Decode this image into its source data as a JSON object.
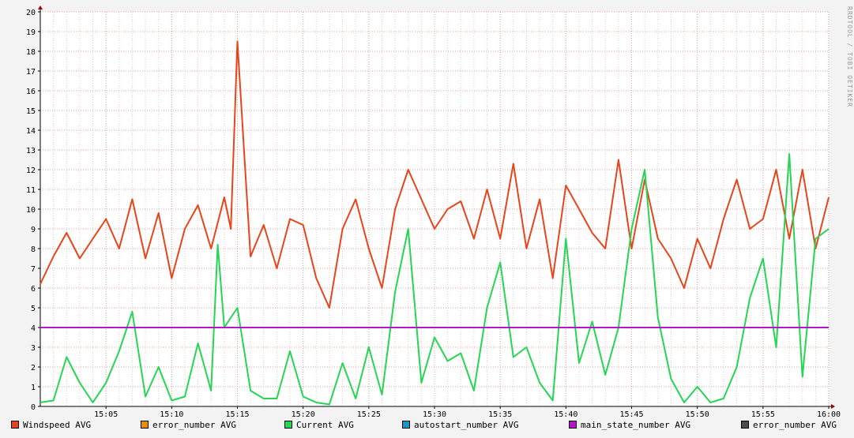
{
  "chart_data": {
    "type": "line",
    "watermark": "RRDTOOL / TOBI OETIKER",
    "ylim": [
      0,
      20
    ],
    "yticks": [
      0,
      1,
      2,
      3,
      4,
      5,
      6,
      7,
      8,
      9,
      10,
      11,
      12,
      13,
      14,
      15,
      16,
      17,
      18,
      19,
      20
    ],
    "xlim": [
      "15:00",
      "16:00"
    ],
    "xticks": [
      "15:05",
      "15:10",
      "15:15",
      "15:20",
      "15:25",
      "15:30",
      "15:35",
      "15:40",
      "15:45",
      "15:50",
      "15:55",
      "16:00"
    ],
    "grid": true,
    "legend_position": "bottom",
    "series": [
      {
        "name": "Windspeed AVG",
        "color": "#e8441a",
        "x": [
          "15:00",
          "15:01",
          "15:02",
          "15:03",
          "15:04",
          "15:05",
          "15:06",
          "15:07",
          "15:08",
          "15:09",
          "15:10",
          "15:11",
          "15:12",
          "15:13",
          "15:14",
          "15:14.5",
          "15:15",
          "15:16",
          "15:17",
          "15:18",
          "15:19",
          "15:20",
          "15:21",
          "15:22",
          "15:23",
          "15:24",
          "15:25",
          "15:26",
          "15:27",
          "15:28",
          "15:29",
          "15:30",
          "15:31",
          "15:32",
          "15:33",
          "15:34",
          "15:35",
          "15:36",
          "15:37",
          "15:38",
          "15:39",
          "15:40",
          "15:41",
          "15:42",
          "15:43",
          "15:44",
          "15:45",
          "15:46",
          "15:47",
          "15:48",
          "15:49",
          "15:50",
          "15:51",
          "15:52",
          "15:53",
          "15:54",
          "15:55",
          "15:56",
          "15:57",
          "15:58",
          "15:59",
          "16:00"
        ],
        "values": [
          6.2,
          7.6,
          8.8,
          7.5,
          8.5,
          9.5,
          8.0,
          10.5,
          7.5,
          9.8,
          6.5,
          9.0,
          10.2,
          8.0,
          10.6,
          9.0,
          18.5,
          7.6,
          9.2,
          7.0,
          9.5,
          9.2,
          6.5,
          5.0,
          9.0,
          10.5,
          8.0,
          6.0,
          10.0,
          12.0,
          10.5,
          9.0,
          10.0,
          10.4,
          8.5,
          11.0,
          8.5,
          12.3,
          8.0,
          10.5,
          6.5,
          11.2,
          10.0,
          8.8,
          8.0,
          12.5,
          8.0,
          11.5,
          8.5,
          7.5,
          6.0,
          8.5,
          7.0,
          9.5,
          11.5,
          9.0,
          9.5,
          12.0,
          8.5,
          12.0,
          8.0,
          10.6
        ]
      },
      {
        "name": "error_number AVG",
        "color": "#ea8f00",
        "x": [],
        "values": []
      },
      {
        "name": "Current AVG",
        "color": "#24d653",
        "x": [
          "15:00",
          "15:01",
          "15:02",
          "15:03",
          "15:04",
          "15:05",
          "15:06",
          "15:07",
          "15:08",
          "15:09",
          "15:10",
          "15:11",
          "15:12",
          "15:13",
          "15:13.5",
          "15:14",
          "15:15",
          "15:16",
          "15:17",
          "15:18",
          "15:19",
          "15:20",
          "15:21",
          "15:22",
          "15:23",
          "15:24",
          "15:25",
          "15:26",
          "15:27",
          "15:28",
          "15:29",
          "15:30",
          "15:31",
          "15:32",
          "15:33",
          "15:34",
          "15:35",
          "15:36",
          "15:37",
          "15:38",
          "15:39",
          "15:40",
          "15:41",
          "15:42",
          "15:43",
          "15:44",
          "15:45",
          "15:46",
          "15:47",
          "15:48",
          "15:49",
          "15:50",
          "15:51",
          "15:52",
          "15:53",
          "15:54",
          "15:55",
          "15:56",
          "15:57",
          "15:58",
          "15:59",
          "16:00"
        ],
        "values": [
          0.2,
          0.3,
          2.5,
          1.2,
          0.2,
          1.2,
          2.8,
          4.8,
          0.5,
          2.0,
          0.3,
          0.5,
          3.2,
          0.8,
          8.2,
          4.0,
          5.0,
          0.8,
          0.4,
          0.4,
          2.8,
          0.5,
          0.2,
          0.1,
          2.2,
          0.4,
          3.0,
          0.6,
          5.8,
          9.0,
          1.2,
          3.5,
          2.3,
          2.7,
          0.8,
          5.0,
          7.3,
          2.5,
          3.0,
          1.2,
          0.3,
          8.5,
          2.2,
          4.3,
          1.6,
          4.0,
          9.0,
          12.0,
          4.5,
          1.4,
          0.2,
          1.0,
          0.2,
          0.4,
          2.0,
          5.5,
          7.5,
          3.0,
          12.8,
          1.5,
          8.5,
          9.0
        ]
      },
      {
        "name": "autostart_number AVG",
        "color": "#1598c3",
        "x": [],
        "values": []
      },
      {
        "name": "main_state_number AVG",
        "color": "#b415c7",
        "x": [
          "15:00",
          "16:00"
        ],
        "values": [
          4,
          4
        ]
      },
      {
        "name": "error_number AVG",
        "color": "#4d4d4d",
        "x": [],
        "values": []
      }
    ]
  }
}
